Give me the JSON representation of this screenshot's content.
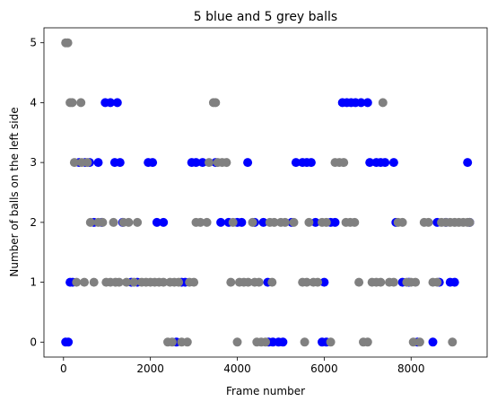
{
  "chart_data": {
    "type": "scatter",
    "title": "5 blue and 5 grey balls",
    "xlabel": "Frame number",
    "ylabel": "Number of balls on the left side",
    "xlim": [
      -450,
      9750
    ],
    "ylim": [
      -0.25,
      5.25
    ],
    "xticks": [
      0,
      2000,
      4000,
      6000,
      8000
    ],
    "yticks": [
      0,
      1,
      2,
      3,
      4,
      5
    ],
    "grid": false,
    "series": [
      {
        "color": "#0000ff",
        "points": [
          [
            50,
            0
          ],
          [
            110,
            0
          ],
          [
            150,
            1
          ],
          [
            210,
            1
          ],
          [
            360,
            3
          ],
          [
            500,
            3
          ],
          [
            600,
            3
          ],
          [
            700,
            2
          ],
          [
            800,
            3
          ],
          [
            880,
            2
          ],
          [
            960,
            4
          ],
          [
            1080,
            4
          ],
          [
            1180,
            3
          ],
          [
            1240,
            4
          ],
          [
            1300,
            3
          ],
          [
            1360,
            2
          ],
          [
            1560,
            1
          ],
          [
            1700,
            1
          ],
          [
            1950,
            3
          ],
          [
            2050,
            3
          ],
          [
            2150,
            2
          ],
          [
            2300,
            2
          ],
          [
            2600,
            0
          ],
          [
            2720,
            1
          ],
          [
            2800,
            1
          ],
          [
            2950,
            3
          ],
          [
            3050,
            3
          ],
          [
            3200,
            3
          ],
          [
            3500,
            3
          ],
          [
            3620,
            2
          ],
          [
            3800,
            2
          ],
          [
            4000,
            2
          ],
          [
            4100,
            2
          ],
          [
            4240,
            3
          ],
          [
            4400,
            2
          ],
          [
            4600,
            2
          ],
          [
            4700,
            1
          ],
          [
            4720,
            0
          ],
          [
            4820,
            0
          ],
          [
            4950,
            0
          ],
          [
            5050,
            0
          ],
          [
            5250,
            2
          ],
          [
            5350,
            3
          ],
          [
            5500,
            3
          ],
          [
            5600,
            3
          ],
          [
            5700,
            3
          ],
          [
            5800,
            2
          ],
          [
            5950,
            0
          ],
          [
            6000,
            1
          ],
          [
            6050,
            0
          ],
          [
            6150,
            2
          ],
          [
            6250,
            2
          ],
          [
            6420,
            4
          ],
          [
            6520,
            4
          ],
          [
            6620,
            4
          ],
          [
            6720,
            4
          ],
          [
            6850,
            4
          ],
          [
            7000,
            4
          ],
          [
            7050,
            3
          ],
          [
            7200,
            3
          ],
          [
            7300,
            3
          ],
          [
            7400,
            3
          ],
          [
            7600,
            3
          ],
          [
            7650,
            2
          ],
          [
            7800,
            1
          ],
          [
            7950,
            1
          ],
          [
            8150,
            0
          ],
          [
            8500,
            0
          ],
          [
            8600,
            2
          ],
          [
            8650,
            1
          ],
          [
            8800,
            2
          ],
          [
            8900,
            1
          ],
          [
            9000,
            1
          ],
          [
            9300,
            3
          ],
          [
            9350,
            2
          ]
        ]
      },
      {
        "color": "#808080",
        "points": [
          [
            50,
            5
          ],
          [
            100,
            5
          ],
          [
            150,
            4
          ],
          [
            200,
            4
          ],
          [
            250,
            3
          ],
          [
            300,
            1
          ],
          [
            400,
            4
          ],
          [
            420,
            3
          ],
          [
            480,
            1
          ],
          [
            550,
            3
          ],
          [
            620,
            2
          ],
          [
            700,
            1
          ],
          [
            800,
            2
          ],
          [
            900,
            2
          ],
          [
            980,
            1
          ],
          [
            1080,
            1
          ],
          [
            1150,
            2
          ],
          [
            1200,
            1
          ],
          [
            1280,
            1
          ],
          [
            1380,
            2
          ],
          [
            1450,
            1
          ],
          [
            1500,
            2
          ],
          [
            1620,
            1
          ],
          [
            1700,
            2
          ],
          [
            1800,
            1
          ],
          [
            1900,
            1
          ],
          [
            2000,
            1
          ],
          [
            2100,
            1
          ],
          [
            2200,
            1
          ],
          [
            2300,
            1
          ],
          [
            2400,
            0
          ],
          [
            2450,
            1
          ],
          [
            2500,
            0
          ],
          [
            2550,
            1
          ],
          [
            2650,
            1
          ],
          [
            2720,
            0
          ],
          [
            2850,
            0
          ],
          [
            2900,
            1
          ],
          [
            3000,
            1
          ],
          [
            3050,
            2
          ],
          [
            3150,
            2
          ],
          [
            3300,
            2
          ],
          [
            3350,
            3
          ],
          [
            3450,
            4
          ],
          [
            3500,
            4
          ],
          [
            3550,
            3
          ],
          [
            3650,
            3
          ],
          [
            3750,
            3
          ],
          [
            3850,
            1
          ],
          [
            3900,
            2
          ],
          [
            4000,
            0
          ],
          [
            4050,
            1
          ],
          [
            4150,
            1
          ],
          [
            4250,
            1
          ],
          [
            4350,
            2
          ],
          [
            4400,
            1
          ],
          [
            4450,
            0
          ],
          [
            4500,
            1
          ],
          [
            4550,
            0
          ],
          [
            4650,
            0
          ],
          [
            4750,
            2
          ],
          [
            4800,
            1
          ],
          [
            4850,
            2
          ],
          [
            5000,
            2
          ],
          [
            5100,
            2
          ],
          [
            5300,
            2
          ],
          [
            5500,
            1
          ],
          [
            5550,
            0
          ],
          [
            5600,
            1
          ],
          [
            5650,
            2
          ],
          [
            5750,
            1
          ],
          [
            5850,
            1
          ],
          [
            5950,
            2
          ],
          [
            6050,
            2
          ],
          [
            6150,
            0
          ],
          [
            6250,
            3
          ],
          [
            6350,
            3
          ],
          [
            6450,
            3
          ],
          [
            6500,
            2
          ],
          [
            6600,
            2
          ],
          [
            6700,
            2
          ],
          [
            6800,
            1
          ],
          [
            6900,
            0
          ],
          [
            7000,
            0
          ],
          [
            7100,
            1
          ],
          [
            7200,
            1
          ],
          [
            7300,
            1
          ],
          [
            7350,
            4
          ],
          [
            7500,
            1
          ],
          [
            7600,
            1
          ],
          [
            7700,
            2
          ],
          [
            7800,
            2
          ],
          [
            7900,
            1
          ],
          [
            8000,
            1
          ],
          [
            8050,
            0
          ],
          [
            8100,
            1
          ],
          [
            8200,
            0
          ],
          [
            8300,
            2
          ],
          [
            8400,
            2
          ],
          [
            8500,
            1
          ],
          [
            8600,
            1
          ],
          [
            8700,
            2
          ],
          [
            8800,
            2
          ],
          [
            8900,
            2
          ],
          [
            8950,
            0
          ],
          [
            9000,
            2
          ],
          [
            9100,
            2
          ],
          [
            9200,
            2
          ],
          [
            9300,
            2
          ],
          [
            9350,
            2
          ]
        ]
      }
    ]
  }
}
